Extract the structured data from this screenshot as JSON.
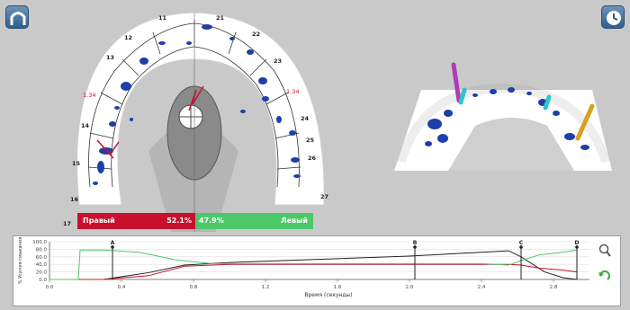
{
  "toolbar": {
    "left_icon": "arch-icon",
    "right_icon": "clock-icon"
  },
  "arch": {
    "tooth_numbers": {
      "n11": "11",
      "n21": "21",
      "n12": "12",
      "n22": "22",
      "n13": "13",
      "n23": "23",
      "n14": "14",
      "n24": "24",
      "n15": "15",
      "n25": "25",
      "n16": "16",
      "n26": "26",
      "n17": "17",
      "n27": "27"
    },
    "red_left": "1.34",
    "red_right": "1.34"
  },
  "side_bar": {
    "left_label": "Правый",
    "left_value": "52.1%",
    "right_value": "47.9%",
    "right_label": "Левый",
    "colors": {
      "left": "#c8102e",
      "right": "#4cc86b"
    }
  },
  "chart_data": {
    "type": "line",
    "ylabel": "% Усилия смыкания",
    "xlabel": "Время (секунды)",
    "yticks": [
      "100.0",
      "80.0",
      "60.0",
      "40.0",
      "20.0",
      "0.0"
    ],
    "xticks": [
      "0.0",
      "0.4",
      "0.8",
      "1.2",
      "1.6",
      "2.0",
      "2.4",
      "2.8"
    ],
    "xlim": [
      0,
      3.0
    ],
    "ylim": [
      0,
      100
    ],
    "markers": [
      {
        "label": "A",
        "x": 0.35
      },
      {
        "label": "B",
        "x": 2.03
      },
      {
        "label": "C",
        "x": 2.62
      },
      {
        "label": "D",
        "x": 2.93
      }
    ],
    "series": [
      {
        "color": "#222222",
        "x": [
          0.0,
          0.3,
          0.55,
          0.75,
          1.0,
          1.6,
          2.0,
          2.4,
          2.55,
          2.62,
          2.75,
          2.85,
          2.93
        ],
        "y": [
          0,
          0,
          18,
          38,
          45,
          55,
          62,
          72,
          76,
          60,
          20,
          5,
          0
        ]
      },
      {
        "color": "#c8102e",
        "x": [
          0.0,
          0.3,
          0.55,
          0.75,
          1.0,
          1.6,
          2.0,
          2.4,
          2.55,
          2.62,
          2.72,
          2.85,
          2.93
        ],
        "y": [
          0,
          0,
          10,
          35,
          40,
          40,
          40,
          40,
          40,
          38,
          30,
          25,
          20
        ]
      },
      {
        "color": "#4cc86b",
        "x": [
          0.0,
          0.16,
          0.17,
          0.3,
          0.5,
          0.7,
          0.9,
          1.6,
          2.4,
          2.55,
          2.62,
          2.72,
          2.85,
          2.93
        ],
        "y": [
          0,
          0,
          78,
          78,
          72,
          52,
          42,
          42,
          42,
          38,
          50,
          65,
          72,
          78
        ]
      }
    ]
  }
}
